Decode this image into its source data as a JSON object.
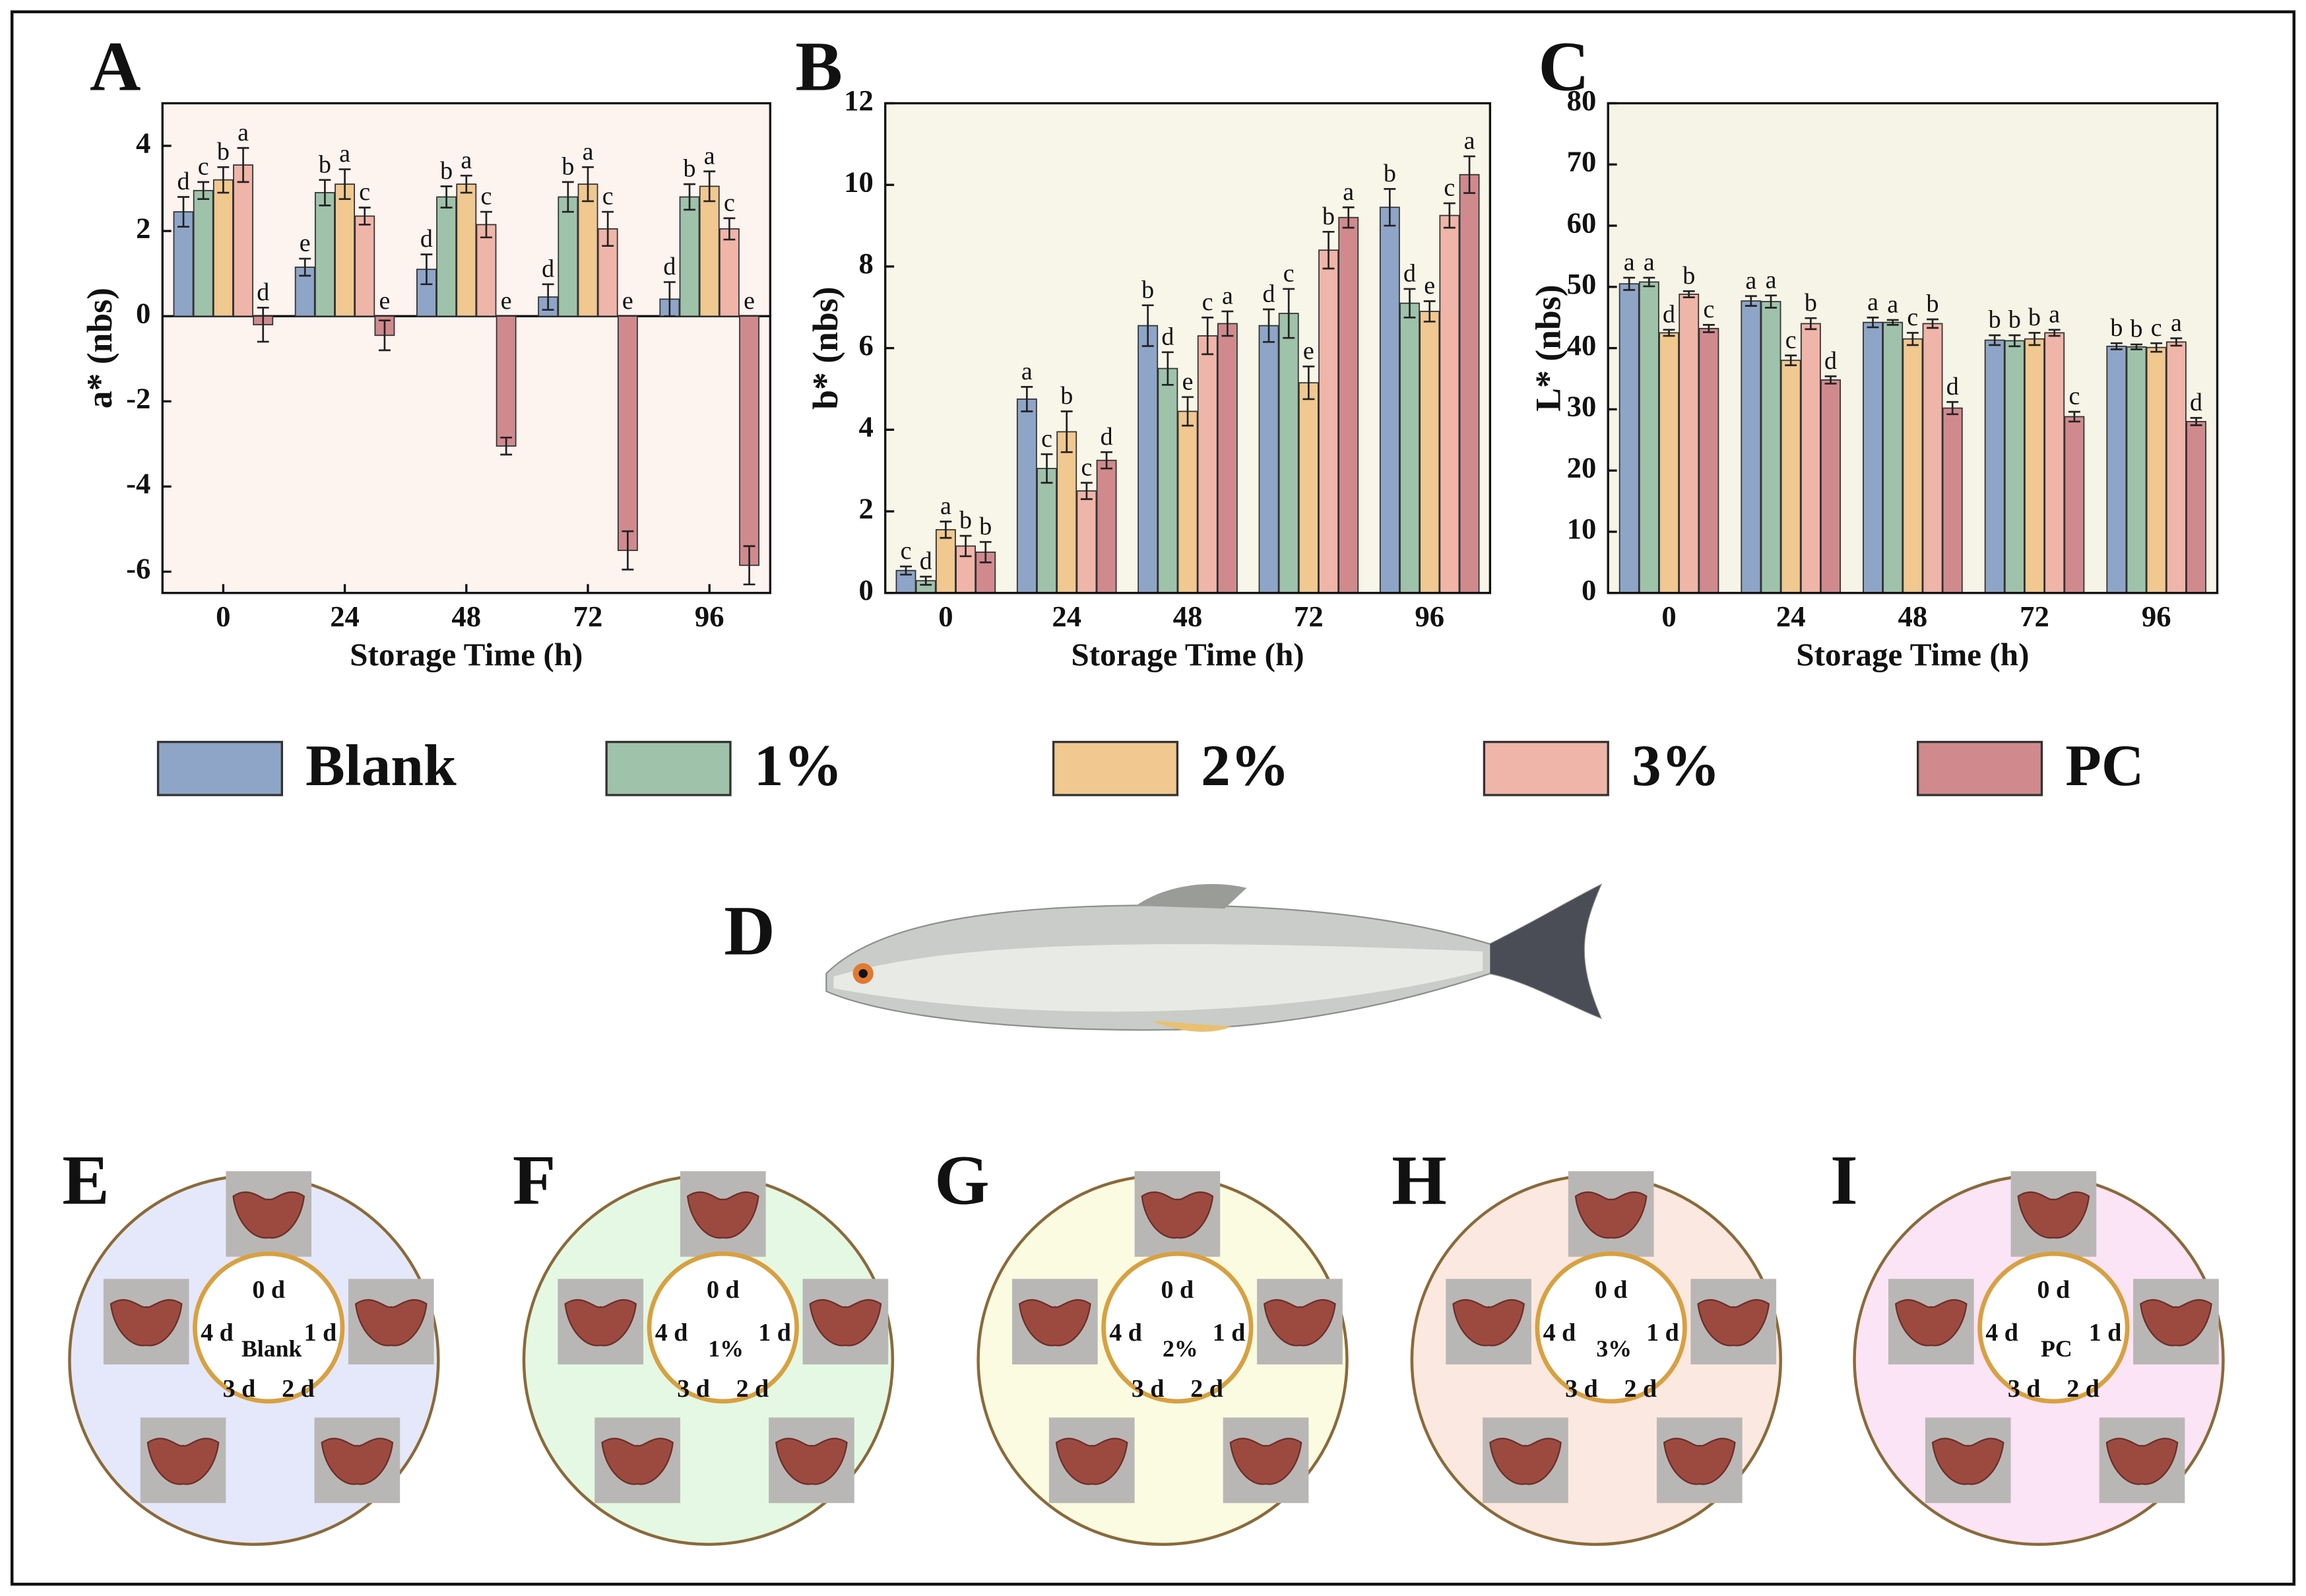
{
  "legend": [
    {
      "name": "Blank",
      "color": "#8ea5c8"
    },
    {
      "name": "1%",
      "color": "#9fc2ab"
    },
    {
      "name": "2%",
      "color": "#f0c890"
    },
    {
      "name": "3%",
      "color": "#efb5a8"
    },
    {
      "name": "PC",
      "color": "#d08a8e"
    }
  ],
  "chart_data": [
    {
      "type": "bar",
      "panel": "A",
      "ylabel": "a* (nbs)",
      "xlabel": "Storage Time (h)",
      "background": "#fdf3ef",
      "categories": [
        "0",
        "24",
        "48",
        "72",
        "96"
      ],
      "ylim": [
        -6.5,
        5
      ],
      "yticks": [
        -6,
        -4,
        -2,
        0,
        2,
        4
      ],
      "series": [
        {
          "values": [
            2.45,
            1.15,
            1.1,
            0.45,
            0.4
          ],
          "errors": [
            0.35,
            0.2,
            0.35,
            0.3,
            0.4
          ],
          "letters": [
            "d",
            "e",
            "d",
            "d",
            "d"
          ]
        },
        {
          "values": [
            2.95,
            2.9,
            2.8,
            2.8,
            2.8
          ],
          "errors": [
            0.2,
            0.3,
            0.25,
            0.35,
            0.3
          ],
          "letters": [
            "c",
            "b",
            "b",
            "b",
            "b"
          ]
        },
        {
          "values": [
            3.2,
            3.1,
            3.1,
            3.1,
            3.05
          ],
          "errors": [
            0.3,
            0.35,
            0.2,
            0.4,
            0.35
          ],
          "letters": [
            "b",
            "a",
            "a",
            "a",
            "a"
          ]
        },
        {
          "values": [
            3.55,
            2.35,
            2.15,
            2.05,
            2.05
          ],
          "errors": [
            0.4,
            0.2,
            0.3,
            0.4,
            0.25
          ],
          "letters": [
            "a",
            "c",
            "c",
            "c",
            "c"
          ]
        },
        {
          "values": [
            -0.2,
            -0.45,
            -3.05,
            -5.5,
            -5.85
          ],
          "errors": [
            0.4,
            0.35,
            0.2,
            0.45,
            0.45
          ],
          "letters": [
            "d",
            "e",
            "e",
            "e",
            "e"
          ]
        }
      ]
    },
    {
      "type": "bar",
      "panel": "B",
      "ylabel": "b* (nbs)",
      "xlabel": "Storage Time (h)",
      "background": "#f8f6e8",
      "categories": [
        "0",
        "24",
        "48",
        "72",
        "96"
      ],
      "ylim": [
        0,
        12
      ],
      "yticks": [
        0,
        2,
        4,
        6,
        8,
        10,
        12
      ],
      "series": [
        {
          "values": [
            0.55,
            4.75,
            6.55,
            6.55,
            9.45
          ],
          "errors": [
            0.1,
            0.3,
            0.5,
            0.4,
            0.45
          ],
          "letters": [
            "c",
            "a",
            "b",
            "d",
            "b"
          ]
        },
        {
          "values": [
            0.3,
            3.05,
            5.5,
            6.85,
            7.1
          ],
          "errors": [
            0.1,
            0.35,
            0.4,
            0.6,
            0.35
          ],
          "letters": [
            "d",
            "c",
            "d",
            "c",
            "d"
          ]
        },
        {
          "values": [
            1.55,
            3.95,
            4.45,
            5.15,
            6.9
          ],
          "errors": [
            0.2,
            0.5,
            0.35,
            0.4,
            0.25
          ],
          "letters": [
            "a",
            "b",
            "e",
            "e",
            "e"
          ]
        },
        {
          "values": [
            1.15,
            2.5,
            6.3,
            8.4,
            9.25
          ],
          "errors": [
            0.25,
            0.2,
            0.45,
            0.45,
            0.3
          ],
          "letters": [
            "b",
            "c",
            "c",
            "b",
            "c"
          ]
        },
        {
          "values": [
            1.0,
            3.25,
            6.6,
            9.2,
            10.25
          ],
          "errors": [
            0.25,
            0.2,
            0.3,
            0.25,
            0.45
          ],
          "letters": [
            "b",
            "d",
            "a",
            "a",
            "a"
          ]
        }
      ]
    },
    {
      "type": "bar",
      "panel": "C",
      "ylabel": "L* (nbs)",
      "xlabel": "Storage Time (h)",
      "background": "#f6f4e6",
      "categories": [
        "0",
        "24",
        "48",
        "72",
        "96"
      ],
      "ylim": [
        0,
        80
      ],
      "yticks": [
        0,
        10,
        20,
        30,
        40,
        50,
        60,
        70,
        80
      ],
      "series": [
        {
          "values": [
            50.5,
            47.7,
            44.2,
            41.3,
            40.3
          ],
          "errors": [
            1,
            0.8,
            0.8,
            0.8,
            0.5
          ],
          "letters": [
            "a",
            "a",
            "a",
            "b",
            "b"
          ]
        },
        {
          "values": [
            50.8,
            47.6,
            44.2,
            41.2,
            40.2
          ],
          "errors": [
            0.7,
            1,
            0.4,
            0.9,
            0.4
          ],
          "letters": [
            "a",
            "a",
            "a",
            "b",
            "b"
          ]
        },
        {
          "values": [
            42.5,
            38,
            41.5,
            41.5,
            40.1
          ],
          "errors": [
            0.5,
            0.8,
            1,
            1,
            0.7
          ],
          "letters": [
            "d",
            "c",
            "c",
            "b",
            "c"
          ]
        },
        {
          "values": [
            48.8,
            44,
            44,
            42.5,
            41
          ],
          "errors": [
            0.5,
            0.9,
            0.7,
            0.5,
            0.6
          ],
          "letters": [
            "b",
            "b",
            "b",
            "a",
            "a"
          ]
        },
        {
          "values": [
            43.2,
            34.8,
            30.2,
            28.8,
            28
          ],
          "errors": [
            0.6,
            0.6,
            1,
            0.8,
            0.6
          ],
          "letters": [
            "c",
            "d",
            "d",
            "c",
            "d"
          ]
        }
      ]
    }
  ],
  "fish_panel": "D",
  "panels": [
    {
      "letter": "E",
      "label": "Blank",
      "color": "#e5e8fa",
      "days": [
        "0 d",
        "1 d",
        "2 d",
        "3 d",
        "4 d"
      ]
    },
    {
      "letter": "F",
      "label": "1%",
      "color": "#e4f8e4",
      "days": [
        "0 d",
        "1 d",
        "2 d",
        "3 d",
        "4 d"
      ]
    },
    {
      "letter": "G",
      "label": "2%",
      "color": "#fbfbe2",
      "days": [
        "0 d",
        "1 d",
        "2 d",
        "3 d",
        "4 d"
      ]
    },
    {
      "letter": "H",
      "label": "3%",
      "color": "#fbe8e0",
      "days": [
        "0 d",
        "1 d",
        "2 d",
        "3 d",
        "4 d"
      ]
    },
    {
      "letter": "I",
      "label": "PC",
      "color": "#fbe4f5",
      "days": [
        "0 d",
        "1 d",
        "2 d",
        "3 d",
        "4 d"
      ]
    }
  ]
}
